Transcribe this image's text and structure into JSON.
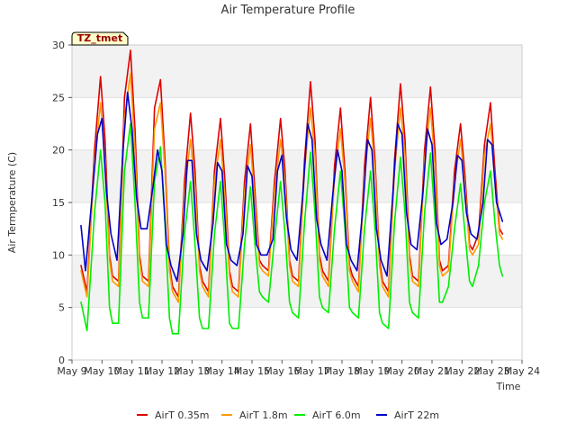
{
  "chart_data": {
    "type": "line",
    "title": "Air Temperature Profile",
    "xlabel": "Time",
    "ylabel": "Air Termperature (C)",
    "badge": "TZ_tmet",
    "xlim": [
      9,
      24
    ],
    "ylim": [
      0,
      30
    ],
    "x_ticks": [
      {
        "value": 9,
        "label": "May 9"
      },
      {
        "value": 10,
        "label": "May 10"
      },
      {
        "value": 11,
        "label": "May 11"
      },
      {
        "value": 12,
        "label": "May 12"
      },
      {
        "value": 13,
        "label": "May 13"
      },
      {
        "value": 14,
        "label": "May 14"
      },
      {
        "value": 15,
        "label": "May 15"
      },
      {
        "value": 16,
        "label": "May 16"
      },
      {
        "value": 17,
        "label": "May 17"
      },
      {
        "value": 18,
        "label": "May 18"
      },
      {
        "value": 19,
        "label": "May 19"
      },
      {
        "value": 20,
        "label": "May 20"
      },
      {
        "value": 21,
        "label": "May 21"
      },
      {
        "value": 22,
        "label": "May 22"
      },
      {
        "value": 23,
        "label": "May 23"
      },
      {
        "value": 24,
        "label": "May 24"
      }
    ],
    "y_ticks": [
      {
        "value": 0,
        "label": "0"
      },
      {
        "value": 5,
        "label": "5"
      },
      {
        "value": 10,
        "label": "10"
      },
      {
        "value": 15,
        "label": "15"
      },
      {
        "value": 20,
        "label": "20"
      },
      {
        "value": 25,
        "label": "25"
      },
      {
        "value": 30,
        "label": "30"
      }
    ],
    "band_pairs": [
      [
        5,
        10
      ],
      [
        15,
        20
      ],
      [
        25,
        30
      ]
    ],
    "legend_position": "bottom",
    "series": [
      {
        "name": "AirT 0.35m",
        "color": "#dd0000",
        "x": [
          9.3,
          9.5,
          9.75,
          9.95,
          10.1,
          10.25,
          10.35,
          10.55,
          10.75,
          10.95,
          11.1,
          11.25,
          11.35,
          11.55,
          11.75,
          11.95,
          12.1,
          12.25,
          12.35,
          12.55,
          12.75,
          12.95,
          13.1,
          13.25,
          13.35,
          13.55,
          13.75,
          13.95,
          14.1,
          14.25,
          14.35,
          14.55,
          14.75,
          14.95,
          15.1,
          15.25,
          15.35,
          15.55,
          15.75,
          15.95,
          16.1,
          16.25,
          16.35,
          16.55,
          16.75,
          16.95,
          17.1,
          17.25,
          17.35,
          17.55,
          17.75,
          17.95,
          18.1,
          18.25,
          18.35,
          18.55,
          18.75,
          18.95,
          19.1,
          19.25,
          19.35,
          19.55,
          19.75,
          19.95,
          20.1,
          20.25,
          20.35,
          20.55,
          20.75,
          20.95,
          21.1,
          21.25,
          21.35,
          21.55,
          21.75,
          21.95,
          22.1,
          22.25,
          22.35,
          22.55,
          22.75,
          22.95,
          23.1,
          23.25,
          23.35
        ],
        "y": [
          9.0,
          6.5,
          20.0,
          27.0,
          21.0,
          10.0,
          8.0,
          7.5,
          25.0,
          29.5,
          22.0,
          10.0,
          8.0,
          7.5,
          24.0,
          26.7,
          19.0,
          9.0,
          7.0,
          6.0,
          17.0,
          23.5,
          18.0,
          9.0,
          7.5,
          6.5,
          18.0,
          23.0,
          17.0,
          8.5,
          7.0,
          6.5,
          17.0,
          22.5,
          16.0,
          9.5,
          9.0,
          8.5,
          17.0,
          23.0,
          18.0,
          9.5,
          8.0,
          7.5,
          19.0,
          26.5,
          21.0,
          10.0,
          8.5,
          7.5,
          18.5,
          24.0,
          18.0,
          9.0,
          8.0,
          7.0,
          18.5,
          25.0,
          19.0,
          9.5,
          7.5,
          6.5,
          19.0,
          26.3,
          21.0,
          10.0,
          8.0,
          7.5,
          20.0,
          26.0,
          20.0,
          9.5,
          8.5,
          9.0,
          18.0,
          22.5,
          17.5,
          11.0,
          10.5,
          12.0,
          20.5,
          24.5,
          18.0,
          12.5,
          12.0
        ]
      },
      {
        "name": "AirT 1.8m",
        "color": "#ff9900",
        "x": [
          9.3,
          9.5,
          9.75,
          9.95,
          10.1,
          10.25,
          10.35,
          10.55,
          10.75,
          10.95,
          11.1,
          11.25,
          11.35,
          11.55,
          11.75,
          11.95,
          12.1,
          12.25,
          12.35,
          12.55,
          12.75,
          12.95,
          13.1,
          13.25,
          13.35,
          13.55,
          13.75,
          13.95,
          14.1,
          14.25,
          14.35,
          14.55,
          14.75,
          14.95,
          15.1,
          15.25,
          15.35,
          15.55,
          15.75,
          15.95,
          16.1,
          16.25,
          16.35,
          16.55,
          16.75,
          16.95,
          17.1,
          17.25,
          17.35,
          17.55,
          17.75,
          17.95,
          18.1,
          18.25,
          18.35,
          18.55,
          18.75,
          18.95,
          19.1,
          19.25,
          19.35,
          19.55,
          19.75,
          19.95,
          20.1,
          20.25,
          20.35,
          20.55,
          20.75,
          20.95,
          21.1,
          21.25,
          21.35,
          21.55,
          21.75,
          21.95,
          22.1,
          22.25,
          22.35,
          22.55,
          22.75,
          22.95,
          23.1,
          23.25,
          23.35
        ],
        "y": [
          8.5,
          6.0,
          19.0,
          24.5,
          19.0,
          9.5,
          7.5,
          7.0,
          23.0,
          27.3,
          20.0,
          9.5,
          7.5,
          7.0,
          22.0,
          24.5,
          18.0,
          8.5,
          6.5,
          5.5,
          16.0,
          21.0,
          16.5,
          8.5,
          7.0,
          6.0,
          17.0,
          21.0,
          15.5,
          8.0,
          6.5,
          6.0,
          16.0,
          20.5,
          15.0,
          9.0,
          8.5,
          8.0,
          16.0,
          21.0,
          17.0,
          9.0,
          7.5,
          7.0,
          18.0,
          24.0,
          19.5,
          9.5,
          8.0,
          7.0,
          17.5,
          22.0,
          17.0,
          8.5,
          7.5,
          6.5,
          17.5,
          23.0,
          18.0,
          9.0,
          7.0,
          6.0,
          18.0,
          24.0,
          19.5,
          9.5,
          7.5,
          7.0,
          19.0,
          24.0,
          18.5,
          9.0,
          8.0,
          8.5,
          17.0,
          21.0,
          16.5,
          10.5,
          10.0,
          11.0,
          19.5,
          22.5,
          17.0,
          12.0,
          11.5
        ]
      },
      {
        "name": "AirT 6.0m",
        "color": "#00ee00",
        "x": [
          9.3,
          9.5,
          9.75,
          9.95,
          10.1,
          10.25,
          10.35,
          10.55,
          10.75,
          10.95,
          11.1,
          11.25,
          11.35,
          11.55,
          11.75,
          11.95,
          12.1,
          12.25,
          12.35,
          12.55,
          12.75,
          12.95,
          13.1,
          13.25,
          13.35,
          13.55,
          13.75,
          13.95,
          14.1,
          14.25,
          14.35,
          14.55,
          14.75,
          14.95,
          15.1,
          15.25,
          15.35,
          15.55,
          15.75,
          15.95,
          16.1,
          16.25,
          16.35,
          16.55,
          16.75,
          16.95,
          17.1,
          17.25,
          17.35,
          17.55,
          17.75,
          17.95,
          18.1,
          18.25,
          18.35,
          18.55,
          18.75,
          18.95,
          19.1,
          19.25,
          19.35,
          19.55,
          19.75,
          19.95,
          20.1,
          20.25,
          20.35,
          20.55,
          20.75,
          20.95,
          21.1,
          21.25,
          21.35,
          21.55,
          21.75,
          21.95,
          22.1,
          22.25,
          22.35,
          22.55,
          22.75,
          22.95,
          23.1,
          23.25,
          23.35
        ],
        "y": [
          5.5,
          2.8,
          14.0,
          20.0,
          15.0,
          5.0,
          3.5,
          3.5,
          18.0,
          22.5,
          15.0,
          5.5,
          4.0,
          4.0,
          17.0,
          20.3,
          13.0,
          4.0,
          2.5,
          2.5,
          12.0,
          17.0,
          11.0,
          4.0,
          3.0,
          3.0,
          12.0,
          17.0,
          11.0,
          3.5,
          3.0,
          3.0,
          11.0,
          16.5,
          11.0,
          6.5,
          6.0,
          5.5,
          11.5,
          17.0,
          12.0,
          5.5,
          4.5,
          4.0,
          13.0,
          19.8,
          14.0,
          6.0,
          5.0,
          4.5,
          12.5,
          18.0,
          12.5,
          5.0,
          4.5,
          4.0,
          12.5,
          18.0,
          12.5,
          4.5,
          3.5,
          3.0,
          13.0,
          19.3,
          14.0,
          5.5,
          4.5,
          4.0,
          14.0,
          19.7,
          13.5,
          5.5,
          5.5,
          7.0,
          12.5,
          16.8,
          12.0,
          7.5,
          7.0,
          9.0,
          15.0,
          18.0,
          13.0,
          9.0,
          8.0
        ]
      },
      {
        "name": "AirT 22m",
        "color": "#0000cc",
        "x": [
          9.3,
          9.45,
          9.65,
          9.85,
          10.0,
          10.15,
          10.3,
          10.5,
          10.7,
          10.85,
          11.0,
          11.15,
          11.3,
          11.5,
          11.7,
          11.85,
          12.0,
          12.15,
          12.3,
          12.5,
          12.7,
          12.85,
          13.0,
          13.15,
          13.3,
          13.5,
          13.7,
          13.85,
          14.0,
          14.15,
          14.3,
          14.5,
          14.7,
          14.85,
          15.0,
          15.15,
          15.3,
          15.5,
          15.7,
          15.85,
          16.0,
          16.15,
          16.3,
          16.5,
          16.7,
          16.85,
          17.0,
          17.15,
          17.3,
          17.5,
          17.7,
          17.85,
          18.0,
          18.15,
          18.3,
          18.5,
          18.7,
          18.85,
          19.0,
          19.15,
          19.3,
          19.5,
          19.7,
          19.85,
          20.0,
          20.15,
          20.3,
          20.5,
          20.7,
          20.85,
          21.0,
          21.15,
          21.3,
          21.5,
          21.7,
          21.85,
          22.0,
          22.15,
          22.3,
          22.5,
          22.7,
          22.85,
          23.0,
          23.15,
          23.35
        ],
        "y": [
          12.8,
          8.5,
          15.0,
          21.5,
          23.0,
          16.0,
          12.0,
          9.5,
          20.0,
          25.5,
          22.0,
          15.5,
          12.5,
          12.5,
          16.5,
          20.0,
          18.0,
          11.0,
          9.0,
          7.5,
          12.0,
          19.0,
          19.0,
          12.0,
          9.5,
          8.5,
          13.0,
          18.8,
          18.0,
          11.0,
          9.5,
          9.0,
          12.0,
          18.5,
          17.5,
          11.0,
          10.0,
          10.0,
          11.5,
          18.0,
          19.5,
          13.5,
          10.5,
          9.5,
          16.0,
          22.5,
          21.0,
          13.5,
          11.0,
          9.5,
          16.0,
          20.0,
          18.0,
          11.0,
          9.5,
          8.5,
          14.5,
          21.0,
          20.0,
          12.5,
          9.5,
          8.0,
          16.0,
          22.5,
          21.5,
          14.0,
          11.0,
          10.5,
          16.0,
          22.0,
          20.5,
          13.0,
          11.0,
          11.5,
          15.0,
          19.5,
          19.0,
          14.0,
          12.0,
          11.5,
          15.0,
          21.0,
          20.5,
          15.0,
          13.2
        ]
      }
    ]
  }
}
